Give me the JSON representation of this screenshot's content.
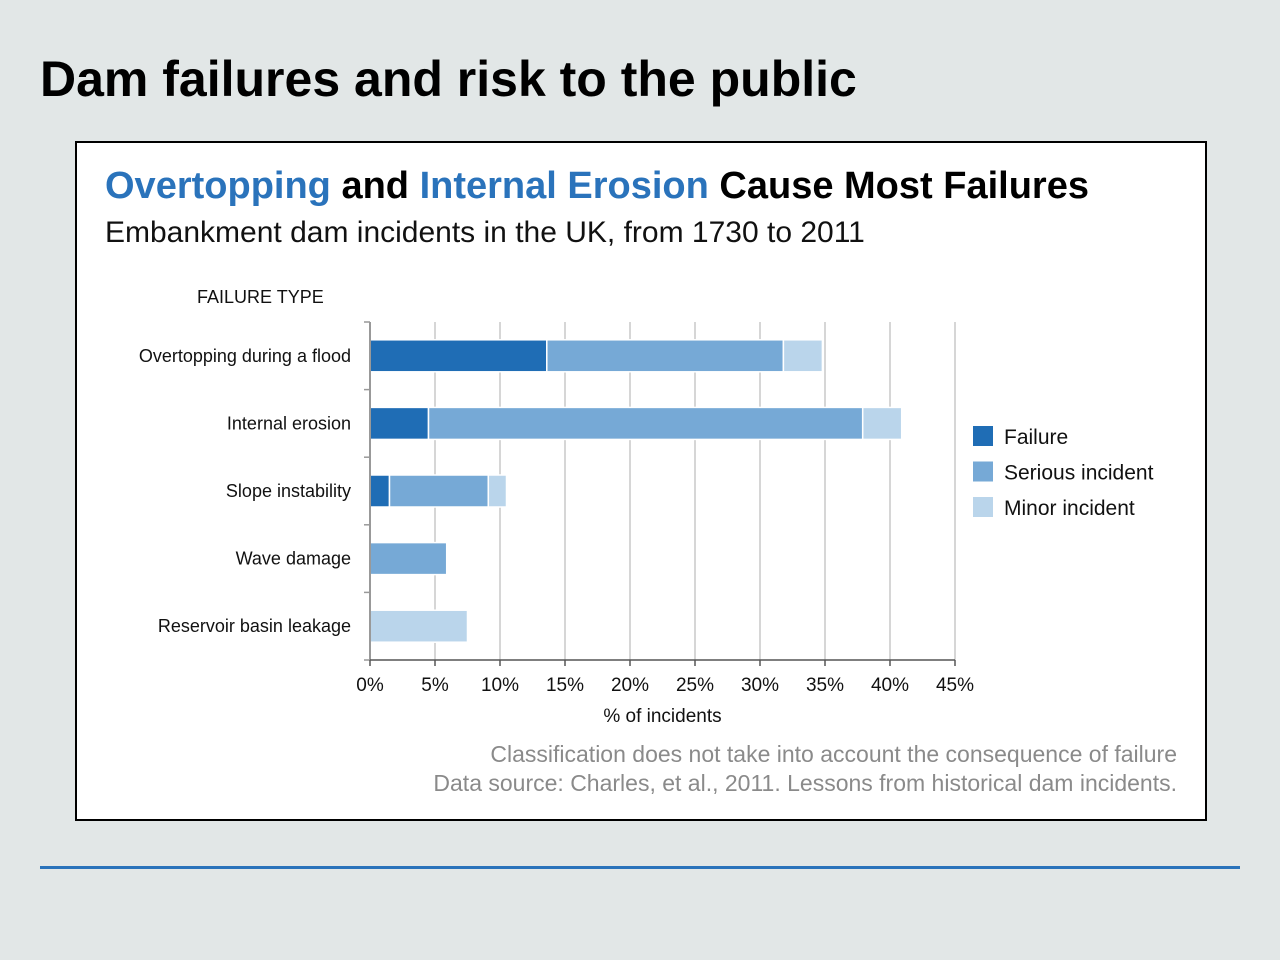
{
  "slide": {
    "title": "Dam failures and risk to the public"
  },
  "chart_data": {
    "type": "bar",
    "orientation": "horizontal",
    "stacked": true,
    "title_parts": [
      {
        "text": "Overtopping",
        "highlight": true
      },
      {
        "text": " and ",
        "highlight": false
      },
      {
        "text": "Internal Erosion",
        "highlight": true
      },
      {
        "text": " Cause Most Failures",
        "highlight": false
      }
    ],
    "subtitle": "Embankment dam incidents in the UK, from 1730 to 2011",
    "category_axis_title": "FAILURE TYPE",
    "categories": [
      "Overtopping during a flood",
      "Internal erosion",
      "Slope instability",
      "Wave damage",
      "Reservoir basin leakage"
    ],
    "series": [
      {
        "name": "Failure",
        "color": "#1f6db5",
        "values": [
          13.6,
          4.5,
          1.5,
          0,
          0
        ]
      },
      {
        "name": "Serious incident",
        "color": "#76a9d6",
        "values": [
          18.2,
          33.4,
          7.6,
          5.9,
          0
        ]
      },
      {
        "name": "Minor incident",
        "color": "#bad5eb",
        "values": [
          3.0,
          3.0,
          1.4,
          0,
          7.5
        ]
      }
    ],
    "xlabel": "% of incidents",
    "xlim": [
      0,
      45
    ],
    "x_ticks": [
      0,
      5,
      10,
      15,
      20,
      25,
      30,
      35,
      40,
      45
    ],
    "x_tick_labels": [
      "0%",
      "5%",
      "10%",
      "15%",
      "20%",
      "25%",
      "30%",
      "35%",
      "40%",
      "45%"
    ],
    "grid": true,
    "legend_position": "right",
    "notes": [
      "Classification does not take into account the consequence of failure",
      "Data source: Charles, et al., 2011. Lessons from historical dam incidents."
    ],
    "colors": {
      "highlight": "#2a73bb",
      "grid": "#d6d6d6",
      "note": "#8a8a8a"
    }
  }
}
